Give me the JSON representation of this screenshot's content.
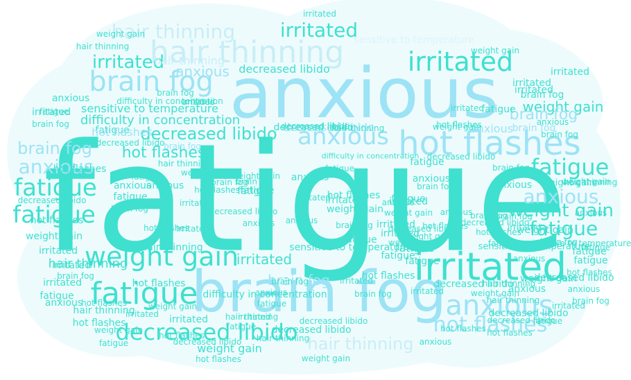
{
  "colors": {
    "background": "#ffffff",
    "cloud_fill": "#eefbfd",
    "teal": "#3fe0cf",
    "sky": "#9ce3f5",
    "light": "#c8eef6",
    "pale": "#dcf4f9"
  },
  "words": [
    {
      "text": "fatigue",
      "color": "teal"
    },
    {
      "text": "anxious",
      "color": "sky"
    },
    {
      "text": "brain fog",
      "color": "sky"
    },
    {
      "text": "irritated",
      "color": "teal"
    },
    {
      "text": "hot flashes",
      "color": "sky"
    },
    {
      "text": "hair thinning",
      "color": "light"
    },
    {
      "text": "brain fog",
      "color": "sky"
    },
    {
      "text": "weight gain",
      "color": "teal"
    },
    {
      "text": "fatigue",
      "color": "teal"
    },
    {
      "text": "decreased libido",
      "color": "teal"
    },
    {
      "text": "anxious",
      "color": "sky"
    },
    {
      "text": "hot flashes",
      "color": "sky"
    },
    {
      "text": "irritated",
      "color": "teal"
    },
    {
      "text": "irritated",
      "color": "teal"
    },
    {
      "text": "anxious",
      "color": "sky"
    },
    {
      "text": "decreased libido",
      "color": "teal"
    },
    {
      "text": "fatigue",
      "color": "teal"
    },
    {
      "text": "fatigue",
      "color": "teal"
    },
    {
      "text": "anxious",
      "color": "sky"
    },
    {
      "text": "weight gain",
      "color": "teal"
    },
    {
      "text": "brain fog",
      "color": "sky"
    },
    {
      "text": "irritated",
      "color": "teal"
    },
    {
      "text": "hair thinning",
      "color": "light"
    },
    {
      "text": "weight gain",
      "color": "teal"
    },
    {
      "text": "anxious",
      "color": "sky"
    },
    {
      "text": "brain fog",
      "color": "sky"
    },
    {
      "text": "decreased libido",
      "color": "teal"
    },
    {
      "text": "anxious",
      "color": "sky"
    },
    {
      "text": "fatigue",
      "color": "teal"
    },
    {
      "text": "fatigue",
      "color": "teal"
    },
    {
      "text": "difficulty in concentration",
      "color": "teal"
    },
    {
      "text": "sensitive to temperature",
      "color": "teal"
    },
    {
      "text": "hot flashes",
      "color": "teal"
    },
    {
      "text": "brain fog",
      "color": "sky"
    },
    {
      "text": "hot flashes",
      "color": "teal"
    },
    {
      "text": "irritated",
      "color": "teal"
    },
    {
      "text": "decreased libido",
      "color": "sky"
    },
    {
      "text": "hair thinning",
      "color": "light"
    },
    {
      "text": "weight gain",
      "color": "teal"
    },
    {
      "text": "irritated",
      "color": "teal"
    },
    {
      "text": "anxious",
      "color": "sky"
    },
    {
      "text": "fatigue",
      "color": "teal"
    },
    {
      "text": "brain fog",
      "color": "sky"
    },
    {
      "text": "fatigue",
      "color": "teal"
    },
    {
      "text": "fatigue",
      "color": "teal"
    },
    {
      "text": "sensitive to temperature",
      "color": "teal"
    },
    {
      "text": "irritated",
      "color": "teal"
    },
    {
      "text": "hot flashes",
      "color": "sky"
    },
    {
      "text": "brain fog",
      "color": "sky"
    },
    {
      "text": "fatigue",
      "color": "teal"
    },
    {
      "text": "anxious",
      "color": "teal"
    },
    {
      "text": "hair thinning",
      "color": "teal"
    },
    {
      "text": "weight gain",
      "color": "teal"
    },
    {
      "text": "irritated",
      "color": "teal"
    },
    {
      "text": "brain fog",
      "color": "teal"
    },
    {
      "text": "decreased libido",
      "color": "teal"
    },
    {
      "text": "anxious",
      "color": "teal"
    },
    {
      "text": "fatigue",
      "color": "teal"
    },
    {
      "text": "irritated",
      "color": "teal"
    },
    {
      "text": "hot flashes",
      "color": "teal"
    },
    {
      "text": "fatigue",
      "color": "teal"
    },
    {
      "text": "weight gain",
      "color": "teal"
    },
    {
      "text": "fatigue",
      "color": "teal"
    },
    {
      "text": "irritated",
      "color": "teal"
    },
    {
      "text": "decreased libido",
      "color": "teal"
    },
    {
      "text": "weight gain",
      "color": "teal"
    },
    {
      "text": "anxious",
      "color": "teal"
    },
    {
      "text": "brain fog",
      "color": "teal"
    },
    {
      "text": "hot flashes",
      "color": "teal"
    },
    {
      "text": "irritated",
      "color": "teal"
    },
    {
      "text": "hair thinning",
      "color": "teal"
    },
    {
      "text": "decreased libido",
      "color": "teal"
    },
    {
      "text": "difficulty in concentration",
      "color": "teal"
    },
    {
      "text": "sensitive to temperature",
      "color": "teal"
    },
    {
      "text": "fatigue",
      "color": "teal"
    },
    {
      "text": "brain fog",
      "color": "teal"
    },
    {
      "text": "anxious",
      "color": "teal"
    },
    {
      "text": "hot flashes",
      "color": "teal"
    },
    {
      "text": "weight gain",
      "color": "teal"
    },
    {
      "text": "irritated",
      "color": "teal"
    },
    {
      "text": "hair thinning",
      "color": "teal"
    },
    {
      "text": "brain fog",
      "color": "teal"
    },
    {
      "text": "fatigue",
      "color": "teal"
    },
    {
      "text": "anxious",
      "color": "teal"
    },
    {
      "text": "decreased libido",
      "color": "teal"
    },
    {
      "text": "hot flashes",
      "color": "teal"
    },
    {
      "text": "irritated",
      "color": "teal"
    },
    {
      "text": "weight gain",
      "color": "teal"
    },
    {
      "text": "brain fog",
      "color": "teal"
    },
    {
      "text": "fatigue",
      "color": "teal"
    },
    {
      "text": "anxious",
      "color": "teal"
    },
    {
      "text": "hair thinning",
      "color": "teal"
    },
    {
      "text": "irritated",
      "color": "teal"
    },
    {
      "text": "hot flashes",
      "color": "teal"
    },
    {
      "text": "weight gain",
      "color": "teal"
    },
    {
      "text": "fatigue",
      "color": "teal"
    },
    {
      "text": "brain fog",
      "color": "teal"
    },
    {
      "text": "decreased libido",
      "color": "teal"
    },
    {
      "text": "anxious",
      "color": "teal"
    },
    {
      "text": "irritated",
      "color": "teal"
    },
    {
      "text": "sensitive to temperature",
      "color": "pale"
    },
    {
      "text": "difficulty in concentration",
      "color": "teal"
    },
    {
      "text": "hair thinning",
      "color": "teal"
    },
    {
      "text": "weight gain",
      "color": "teal"
    },
    {
      "text": "irritated",
      "color": "teal"
    },
    {
      "text": "decreased libido",
      "color": "teal"
    },
    {
      "text": "brain fog",
      "color": "teal"
    },
    {
      "text": "anxious",
      "color": "teal"
    },
    {
      "text": "fatigue",
      "color": "teal"
    },
    {
      "text": "hot flashes",
      "color": "teal"
    },
    {
      "text": "irritated",
      "color": "teal"
    },
    {
      "text": "weight gain",
      "color": "teal"
    },
    {
      "text": "decreased libido",
      "color": "teal"
    },
    {
      "text": "hair thinning",
      "color": "light"
    },
    {
      "text": "fatigue",
      "color": "teal"
    },
    {
      "text": "anxious",
      "color": "teal"
    },
    {
      "text": "brain fog",
      "color": "teal"
    },
    {
      "text": "hot flashes",
      "color": "teal"
    },
    {
      "text": "irritated",
      "color": "teal"
    },
    {
      "text": "weight gain",
      "color": "teal"
    },
    {
      "text": "fatigue",
      "color": "teal"
    },
    {
      "text": "anxious",
      "color": "teal"
    },
    {
      "text": "decreased libido",
      "color": "teal"
    },
    {
      "text": "brain fog",
      "color": "teal"
    },
    {
      "text": "irritated",
      "color": "teal"
    },
    {
      "text": "hot flashes",
      "color": "teal"
    },
    {
      "text": "fatigue",
      "color": "teal"
    },
    {
      "text": "weight gain",
      "color": "teal"
    },
    {
      "text": "anxious",
      "color": "teal"
    },
    {
      "text": "hair thinning",
      "color": "teal"
    },
    {
      "text": "brain fog",
      "color": "teal"
    },
    {
      "text": "irritated",
      "color": "teal"
    },
    {
      "text": "sensitive to temperature",
      "color": "teal"
    },
    {
      "text": "decreased libido",
      "color": "teal"
    },
    {
      "text": "fatigue",
      "color": "teal"
    },
    {
      "text": "anxious",
      "color": "teal"
    },
    {
      "text": "hot flashes",
      "color": "teal"
    },
    {
      "text": "weight gain",
      "color": "teal"
    },
    {
      "text": "irritated",
      "color": "teal"
    },
    {
      "text": "brain fog",
      "color": "teal"
    },
    {
      "text": "hair thinning",
      "color": "teal"
    },
    {
      "text": "fatigue",
      "color": "teal"
    },
    {
      "text": "anxious",
      "color": "teal"
    },
    {
      "text": "decreased libido",
      "color": "teal"
    },
    {
      "text": "irritated",
      "color": "teal"
    },
    {
      "text": "hot flashes",
      "color": "teal"
    },
    {
      "text": "weight gain",
      "color": "teal"
    },
    {
      "text": "brain fog",
      "color": "teal"
    },
    {
      "text": "fatigue",
      "color": "teal"
    },
    {
      "text": "anxious",
      "color": "teal"
    },
    {
      "text": "irritated",
      "color": "teal"
    },
    {
      "text": "hair thinning",
      "color": "teal"
    },
    {
      "text": "decreased libido",
      "color": "teal"
    },
    {
      "text": "hot flashes",
      "color": "teal"
    },
    {
      "text": "weight gain",
      "color": "teal"
    },
    {
      "text": "brain fog",
      "color": "teal"
    },
    {
      "text": "fatigue",
      "color": "teal"
    },
    {
      "text": "anxious",
      "color": "teal"
    },
    {
      "text": "irritated",
      "color": "teal"
    },
    {
      "text": "difficulty in concentration",
      "color": "teal"
    },
    {
      "text": "hot flashes",
      "color": "teal"
    },
    {
      "text": "weight gain",
      "color": "teal"
    },
    {
      "text": "decreased libido",
      "color": "teal"
    },
    {
      "text": "brain fog",
      "color": "teal"
    },
    {
      "text": "hair thinning",
      "color": "teal"
    },
    {
      "text": "fatigue",
      "color": "teal"
    },
    {
      "text": "irritated",
      "color": "teal"
    },
    {
      "text": "anxious",
      "color": "teal"
    },
    {
      "text": "hot flashes",
      "color": "teal"
    },
    {
      "text": "weight gain",
      "color": "teal"
    },
    {
      "text": "brain fog",
      "color": "teal"
    },
    {
      "text": "decreased libido",
      "color": "teal"
    },
    {
      "text": "fatigue",
      "color": "teal"
    },
    {
      "text": "irritated",
      "color": "teal"
    },
    {
      "text": "anxious",
      "color": "teal"
    },
    {
      "text": "hot flashes",
      "color": "teal"
    },
    {
      "text": "hair thinning",
      "color": "teal"
    },
    {
      "text": "weight gain",
      "color": "teal"
    },
    {
      "text": "brain fog",
      "color": "teal"
    },
    {
      "text": "fatigue",
      "color": "teal"
    },
    {
      "text": "irritated",
      "color": "teal"
    },
    {
      "text": "decreased libido",
      "color": "teal"
    },
    {
      "text": "anxious",
      "color": "teal"
    },
    {
      "text": "hot flashes",
      "color": "teal"
    },
    {
      "text": "weight gain",
      "color": "teal"
    },
    {
      "text": "brain fog",
      "color": "teal"
    },
    {
      "text": "irritated",
      "color": "teal"
    },
    {
      "text": "hair thinning",
      "color": "teal"
    },
    {
      "text": "fatigue",
      "color": "teal"
    },
    {
      "text": "anxious",
      "color": "teal"
    },
    {
      "text": "decreased libido",
      "color": "teal"
    },
    {
      "text": "hot flashes",
      "color": "teal"
    },
    {
      "text": "weight gain",
      "color": "teal"
    },
    {
      "text": "irritated",
      "color": "teal"
    }
  ]
}
